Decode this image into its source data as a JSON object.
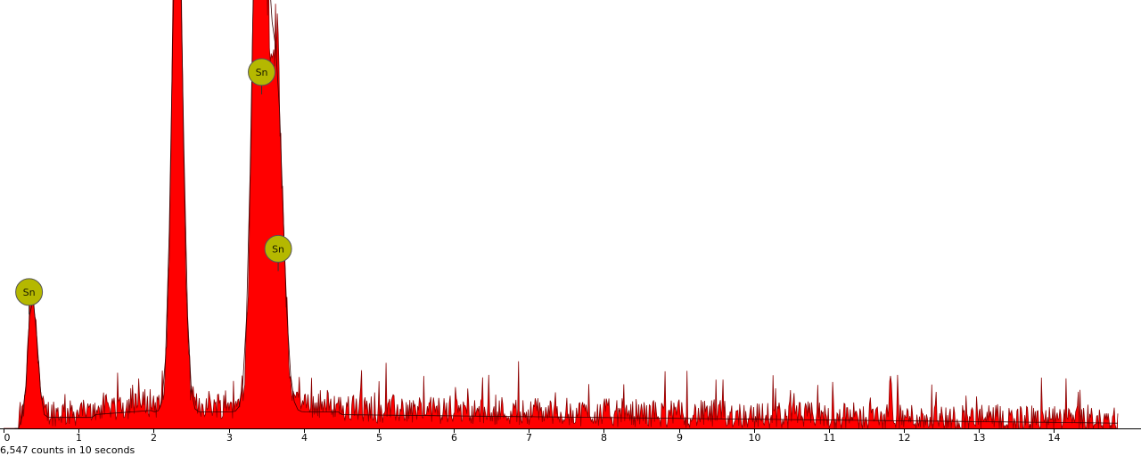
{
  "chart_data": {
    "type": "area",
    "title": "",
    "xlabel": "",
    "ylabel": "",
    "xlim": [
      0,
      15.1
    ],
    "ylim": [
      0,
      100
    ],
    "x_ticks": [
      "0",
      "1",
      "2",
      "3",
      "4",
      "5",
      "6",
      "7",
      "8",
      "9",
      "10",
      "11",
      "12",
      "13",
      "14"
    ],
    "caption": "6,547 counts in 10 seconds",
    "spectrum_color": "#ff0000",
    "spectrum_edge_color": "#8b0000",
    "marker_color": "#b5b800",
    "peaks": [
      {
        "energy": 0.36,
        "value": 26
      },
      {
        "energy": 0.43,
        "value": 19
      },
      {
        "energy": 2.29,
        "value": 72
      },
      {
        "energy": 2.34,
        "value": 80
      },
      {
        "energy": 3.44,
        "value": 100
      },
      {
        "energy": 3.38,
        "value": 86
      },
      {
        "energy": 3.66,
        "value": 52
      },
      {
        "energy": 3.6,
        "value": 42
      }
    ],
    "noise_level": 7,
    "annotations": [
      {
        "label": "Sn",
        "energy": 0.34,
        "value": 32
      },
      {
        "label": "Sn",
        "energy": 3.44,
        "value": 88
      },
      {
        "label": "Sn",
        "energy": 3.66,
        "value": 43
      }
    ]
  }
}
